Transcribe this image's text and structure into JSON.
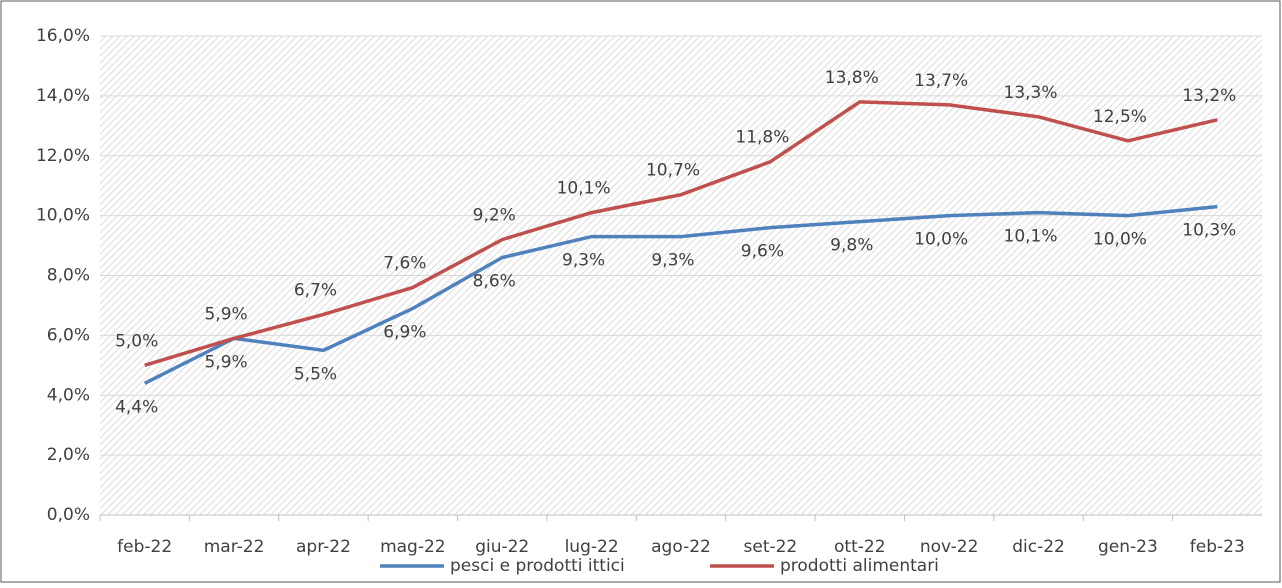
{
  "chart_data": {
    "type": "line",
    "categories": [
      "feb-22",
      "mar-22",
      "apr-22",
      "mag-22",
      "giu-22",
      "lug-22",
      "ago-22",
      "set-22",
      "ott-22",
      "nov-22",
      "dic-22",
      "gen-23",
      "feb-23"
    ],
    "series": [
      {
        "name": "pesci e prodotti ittici",
        "color": "#4f81bd",
        "values": [
          4.4,
          5.9,
          5.5,
          6.9,
          8.6,
          9.3,
          9.3,
          9.6,
          9.8,
          10.0,
          10.1,
          10.0,
          10.3
        ],
        "value_labels": [
          "4,4%",
          "5,9%",
          "5,5%",
          "6,9%",
          "8,6%",
          "9,3%",
          "9,3%",
          "9,6%",
          "9,8%",
          "10,0%",
          "10,1%",
          "10,0%",
          "10,3%"
        ]
      },
      {
        "name": "prodotti alimentari",
        "color": "#c0504d",
        "values": [
          5.0,
          5.9,
          6.7,
          7.6,
          9.2,
          10.1,
          10.7,
          11.8,
          13.8,
          13.7,
          13.3,
          12.5,
          13.2
        ],
        "value_labels": [
          "5,0%",
          "5,9%",
          "6,7%",
          "7,6%",
          "9,2%",
          "10,1%",
          "10,7%",
          "11,8%",
          "13,8%",
          "13,7%",
          "13,3%",
          "12,5%",
          "13,2%"
        ]
      }
    ],
    "ylim": [
      0,
      16
    ],
    "yticks": [
      {
        "value": 0,
        "label": "0,0%"
      },
      {
        "value": 2,
        "label": "2,0%"
      },
      {
        "value": 4,
        "label": "4,0%"
      },
      {
        "value": 6,
        "label": "6,0%"
      },
      {
        "value": 8,
        "label": "8,0%"
      },
      {
        "value": 10,
        "label": "10,0%"
      },
      {
        "value": 12,
        "label": "12,0%"
      },
      {
        "value": 14,
        "label": "14,0%"
      },
      {
        "value": 16,
        "label": "16,0%"
      }
    ],
    "grid": true,
    "legend": "bottom"
  }
}
